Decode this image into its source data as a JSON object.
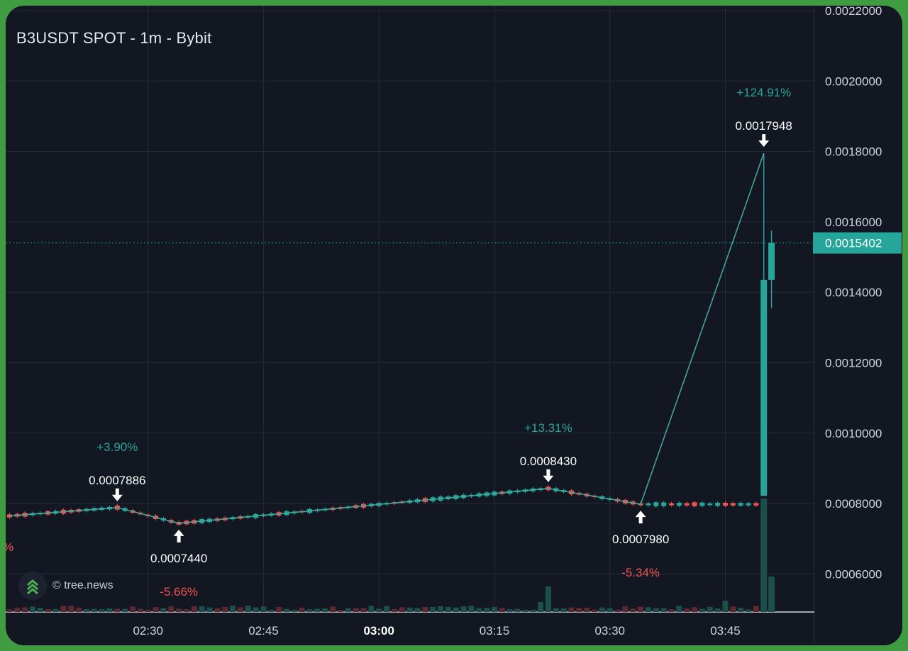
{
  "chart_data": {
    "type": "candlestick",
    "title": "B3USDT SPOT - 1m - Bybit",
    "watermark": "© tree.news",
    "y_ticks": [
      "0.0022000",
      "0.0020000",
      "0.0018000",
      "0.0016000",
      "0.0014000",
      "0.0012000",
      "0.0010000",
      "0.0008000",
      "0.0006000"
    ],
    "ylim": [
      0.0005,
      0.0022
    ],
    "x_ticks": [
      {
        "label": "02:30",
        "time": "02:30",
        "bold": false
      },
      {
        "label": "02:45",
        "time": "02:45",
        "bold": false
      },
      {
        "label": "03:00",
        "time": "03:00",
        "bold": true
      },
      {
        "label": "03:15",
        "time": "03:15",
        "bold": false
      },
      {
        "label": "03:30",
        "time": "03:30",
        "bold": false
      },
      {
        "label": "03:45",
        "time": "03:45",
        "bold": false
      }
    ],
    "xlim": [
      "02:12",
      "03:59"
    ],
    "current_price": {
      "label": "0.0015402",
      "value": 0.0015402
    },
    "zigzag": [
      {
        "time": "02:12",
        "price": 0.000765
      },
      {
        "time": "02:26",
        "price": 0.0007886
      },
      {
        "time": "02:34",
        "price": 0.000744
      },
      {
        "time": "03:22",
        "price": 0.000843
      },
      {
        "time": "03:34",
        "price": 0.000798
      },
      {
        "time": "03:50",
        "price": 0.0017948
      }
    ],
    "pivots": [
      {
        "time": "02:26",
        "price_label": "0.0007886",
        "direction": "down",
        "pct": "+3.90%",
        "pct_color": "#26a69a"
      },
      {
        "time": "02:34",
        "price_label": "0.0007440",
        "direction": "up",
        "pct": "-5.66%",
        "pct_color": "#ef5350"
      },
      {
        "time": "03:22",
        "price_label": "0.0008430",
        "direction": "down",
        "pct": "+13.31%",
        "pct_color": "#26a69a"
      },
      {
        "time": "03:34",
        "price_label": "0.0007980",
        "direction": "up",
        "pct": "-5.34%",
        "pct_color": "#ef5350"
      },
      {
        "time": "03:50",
        "price_label": "0.0017948",
        "direction": "down",
        "pct": "+124.91%",
        "pct_color": "#26a69a"
      }
    ],
    "edge_label": "%",
    "big_candles": [
      {
        "time": "03:50",
        "open": 0.000822,
        "high": 0.0017948,
        "low": 0.000822,
        "close": 0.001435
      },
      {
        "time": "03:51",
        "open": 0.001435,
        "high": 0.001575,
        "low": 0.001355,
        "close": 0.0015402
      }
    ],
    "colors": {
      "up": "#26a69a",
      "down": "#ef5350",
      "background": "#131722",
      "grid": "#262b38",
      "text": "#d1d4dc",
      "zigzag": "#3fa69a"
    }
  }
}
